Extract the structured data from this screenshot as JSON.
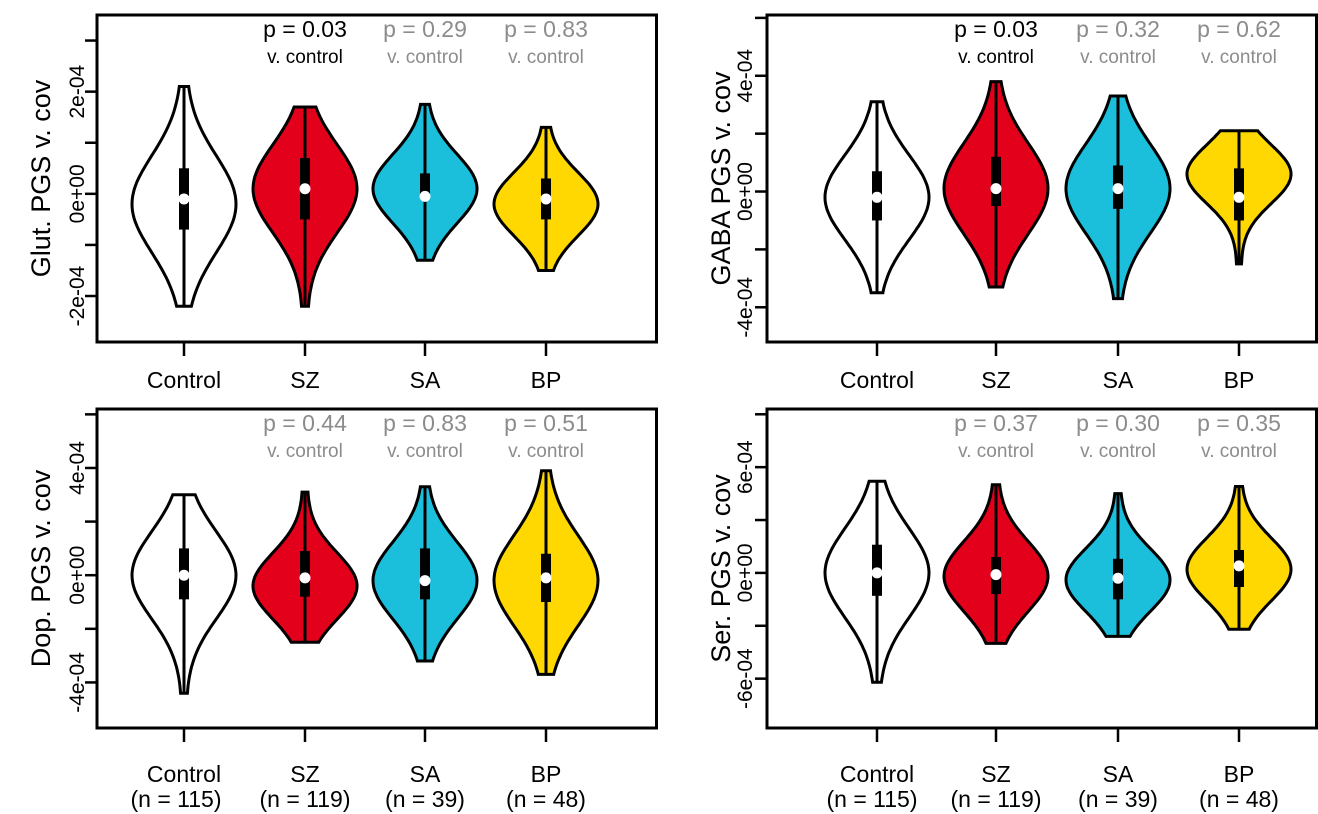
{
  "chart_data": [
    {
      "type": "violin",
      "ylabel": "Glut. PGS v. cov",
      "yticks": [
        -0.0002,
        0,
        0.0002
      ],
      "ytick_labels": [
        "-2e-04",
        "0e+00",
        "2e-04"
      ],
      "ylim": [
        -0.00029,
        0.00035
      ],
      "categories": [
        "Control",
        "SZ",
        "SA",
        "BP"
      ],
      "n_labels": [],
      "groups": [
        {
          "name": "Control",
          "min": -0.00022,
          "max": 0.00021,
          "q1": -7e-05,
          "q3": 5e-05,
          "median": -1e-05,
          "mode": -2e-05,
          "p": "",
          "vc": "",
          "sig": false
        },
        {
          "name": "SZ",
          "min": -0.00022,
          "max": 0.00017,
          "q1": -5e-05,
          "q3": 7e-05,
          "median": 1e-05,
          "mode": 1e-05,
          "p": "p = 0.03",
          "vc": "v. control",
          "sig": true
        },
        {
          "name": "SA",
          "min": -0.00013,
          "max": 0.000175,
          "q1": -1e-05,
          "q3": 4e-05,
          "median": -5e-06,
          "mode": 1e-05,
          "p": "p = 0.29",
          "vc": "v. control",
          "sig": false
        },
        {
          "name": "BP",
          "min": -0.00015,
          "max": 0.00013,
          "q1": -5e-05,
          "q3": 3e-05,
          "median": -1e-05,
          "mode": -2e-05,
          "p": "p = 0.83",
          "vc": "v. control",
          "sig": false
        }
      ]
    },
    {
      "type": "violin",
      "ylabel": "GABA PGS v. cov",
      "yticks": [
        -0.0004,
        0,
        0.0004
      ],
      "ytick_labels": [
        "-4e-04",
        "0e+00",
        "4e-04"
      ],
      "ylim": [
        -0.00052,
        0.00061
      ],
      "categories": [
        "Control",
        "SZ",
        "SA",
        "BP"
      ],
      "n_labels": [],
      "groups": [
        {
          "name": "Control",
          "min": -0.00035,
          "max": 0.00031,
          "q1": -0.0001,
          "q3": 7e-05,
          "median": -2e-05,
          "mode": -2e-05,
          "p": "",
          "vc": "",
          "sig": false
        },
        {
          "name": "SZ",
          "min": -0.00033,
          "max": 0.00038,
          "q1": -5e-05,
          "q3": 0.00012,
          "median": 1e-05,
          "mode": 1e-05,
          "p": "p = 0.03",
          "vc": "v. control",
          "sig": true
        },
        {
          "name": "SA",
          "min": -0.00037,
          "max": 0.00033,
          "q1": -6e-05,
          "q3": 9e-05,
          "median": 1e-05,
          "mode": 1e-05,
          "p": "p = 0.32",
          "vc": "v. control",
          "sig": false
        },
        {
          "name": "BP",
          "min": -0.00025,
          "max": 0.00021,
          "q1": -0.0001,
          "q3": 8e-05,
          "median": -2e-05,
          "mode": 6e-05,
          "p": "p = 0.62",
          "vc": "v. control",
          "sig": false
        }
      ]
    },
    {
      "type": "violin",
      "ylabel": "Dop. PGS v. cov",
      "yticks": [
        -0.0004,
        0,
        0.0004
      ],
      "ytick_labels": [
        "-4e-04",
        "0e+00",
        "4e-04"
      ],
      "ylim": [
        -0.00057,
        0.00062
      ],
      "categories": [
        "Control",
        "SZ",
        "SA",
        "BP"
      ],
      "n_labels": [
        "(n = 115)",
        "(n = 119)",
        "(n = 39)",
        "(n = 48)"
      ],
      "groups": [
        {
          "name": "Control",
          "min": -0.00044,
          "max": 0.0003,
          "q1": -9e-05,
          "q3": 0.0001,
          "median": 0,
          "mode": 0,
          "p": "",
          "vc": "",
          "sig": false
        },
        {
          "name": "SZ",
          "min": -0.00025,
          "max": 0.00031,
          "q1": -8e-05,
          "q3": 9e-05,
          "median": -1e-05,
          "mode": -4e-05,
          "p": "p = 0.44",
          "vc": "v. control",
          "sig": false
        },
        {
          "name": "SA",
          "min": -0.00032,
          "max": 0.00033,
          "q1": -9e-05,
          "q3": 0.0001,
          "median": -2e-05,
          "mode": -2e-05,
          "p": "p = 0.83",
          "vc": "v. control",
          "sig": false
        },
        {
          "name": "BP",
          "min": -0.00037,
          "max": 0.00039,
          "q1": -0.0001,
          "q3": 8e-05,
          "median": -1e-05,
          "mode": -2e-05,
          "p": "p = 0.51",
          "vc": "v. control",
          "sig": false
        }
      ]
    },
    {
      "type": "violin",
      "ylabel": "Ser. PGS v. cov",
      "yticks": [
        -0.0006,
        0,
        0.0006
      ],
      "ytick_labels": [
        "-6e-04",
        "0e+00",
        "6e-04"
      ],
      "ylim": [
        -0.00088,
        0.00093
      ],
      "categories": [
        "Control",
        "SZ",
        "SA",
        "BP"
      ],
      "n_labels": [
        "(n = 115)",
        "(n = 119)",
        "(n = 39)",
        "(n = 48)"
      ],
      "groups": [
        {
          "name": "Control",
          "min": -0.00062,
          "max": 0.00052,
          "q1": -0.00013,
          "q3": 0.00016,
          "median": 0,
          "mode": 0,
          "p": "",
          "vc": "",
          "sig": false
        },
        {
          "name": "SZ",
          "min": -0.0004,
          "max": 0.0005,
          "q1": -0.00012,
          "q3": 9e-05,
          "median": -1e-05,
          "mode": -2e-05,
          "p": "p = 0.37",
          "vc": "v. control",
          "sig": false
        },
        {
          "name": "SA",
          "min": -0.00036,
          "max": 0.00045,
          "q1": -0.00015,
          "q3": 8e-05,
          "median": -3e-05,
          "mode": -4e-05,
          "p": "p = 0.30",
          "vc": "v. control",
          "sig": false
        },
        {
          "name": "BP",
          "min": -0.00032,
          "max": 0.00049,
          "q1": -8e-05,
          "q3": 0.00013,
          "median": 4e-05,
          "mode": 2e-05,
          "p": "p = 0.35",
          "vc": "v. control",
          "sig": false
        }
      ]
    }
  ],
  "colors": {
    "Control": "#ffffff",
    "SZ": "#e3001b",
    "SA": "#1bbfdc",
    "BP": "#fed800",
    "p_significant": "#000000",
    "p_nonsignificant": "#8c8c8c",
    "axis": "#000000"
  }
}
